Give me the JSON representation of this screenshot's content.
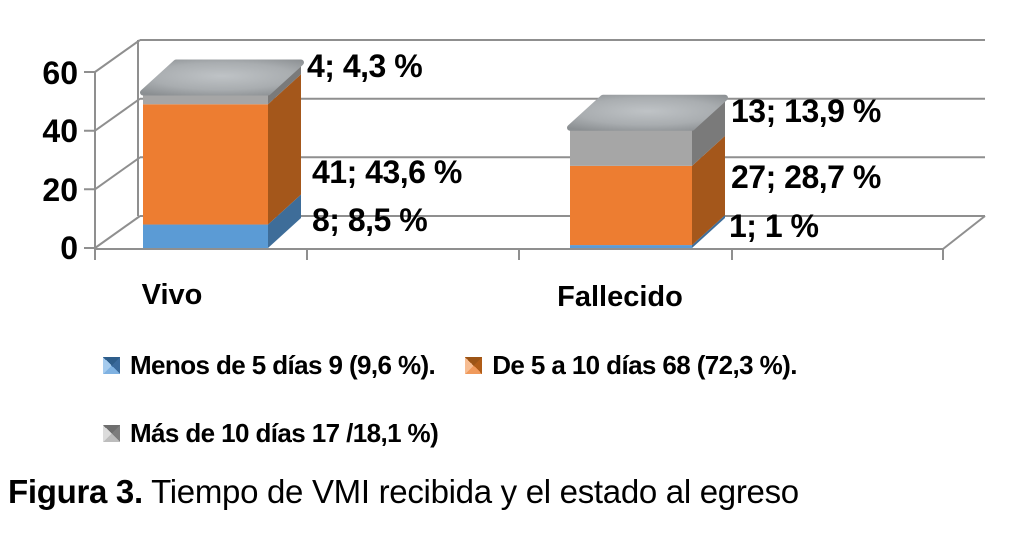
{
  "figure": {
    "caption_label": "Figura 3.",
    "caption_text": "Tiempo de VMI recibida y el estado al egreso"
  },
  "chart_data": {
    "type": "bar",
    "stacked": true,
    "style": "3d",
    "title": "",
    "xlabel": "",
    "ylabel": "",
    "categories": [
      "Vivo",
      "Fallecido"
    ],
    "series": [
      {
        "name": "Menos de 5 días",
        "legend_label": "Menos de 5 días 9 (9,6 %).",
        "color": "#5B9BD5",
        "values": [
          8,
          1
        ]
      },
      {
        "name": "De 5 a 10 días",
        "legend_label": "De 5 a 10 días 68 (72,3 %).",
        "color": "#ED7D31",
        "values": [
          41,
          27
        ]
      },
      {
        "name": "Más de 10 días",
        "legend_label": "Más de 10 días 17 /18,1 %)",
        "color": "#A6A6A6",
        "values": [
          4,
          13
        ]
      }
    ],
    "data_labels": {
      "vivo": [
        "8; 8,5 %",
        "41; 43,6 %",
        "4; 4,3 %"
      ],
      "fallecido": [
        "1; 1 %",
        "27; 28,7 %",
        "13; 13,9 %"
      ]
    },
    "ytick_labels": [
      "0",
      "20",
      "40",
      "60"
    ],
    "ylim": [
      0,
      60
    ],
    "grid": true,
    "legend_position": "bottom"
  },
  "colors": {
    "grid": "#8F8F8F",
    "blue_front": "#5B9BD5",
    "blue_side": "#3E6D99",
    "orange_front": "#ED7D31",
    "orange_side": "#A4571B",
    "gray_front": "#A6A6A6",
    "gray_side": "#7A7A7A"
  }
}
